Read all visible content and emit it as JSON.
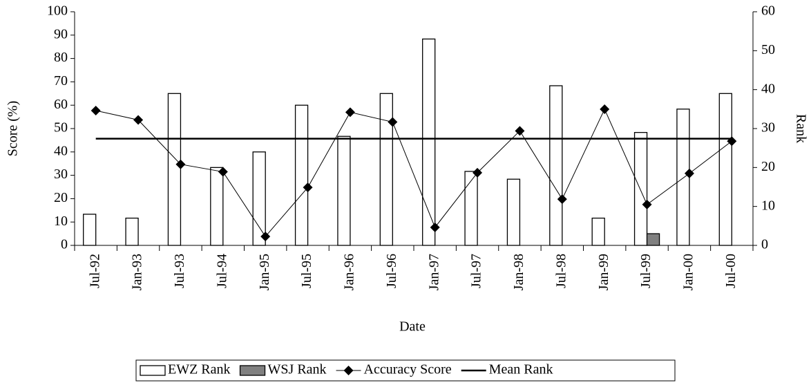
{
  "chart_data": {
    "type": "bar-line",
    "xlabel": "Date",
    "ylabel": "Score (%)",
    "y2label": "Rank",
    "categories": [
      "Jul-92",
      "Jan-93",
      "Jul-93",
      "Jul-94",
      "Jan-95",
      "Jul-95",
      "Jan-96",
      "Jul-96",
      "Jan-97",
      "Jul-97",
      "Jan-98",
      "Jul-98",
      "Jan-99",
      "Jul-99",
      "Jan-00",
      "Jul-00"
    ],
    "series": [
      {
        "name": "EWZ Rank",
        "type": "bar",
        "axis": "y2",
        "color": "#ffffff",
        "values": [
          8,
          7,
          39,
          20,
          24,
          36,
          28,
          39,
          53,
          19,
          17,
          41,
          7,
          29,
          35,
          39
        ]
      },
      {
        "name": "WSJ Rank",
        "type": "bar",
        "axis": "y2",
        "color": "#808080",
        "values": [
          null,
          null,
          null,
          null,
          null,
          null,
          null,
          null,
          null,
          null,
          null,
          null,
          null,
          3,
          null,
          null
        ]
      },
      {
        "name": "Accuracy Score",
        "type": "line",
        "marker": "diamond",
        "color": "#000000",
        "values": [
          57.7,
          53.7,
          34.7,
          31.5,
          3.8,
          24.8,
          57,
          52.8,
          7.7,
          31.1,
          49,
          19.8,
          58.3,
          17.5,
          30.8,
          44.6
        ]
      },
      {
        "name": "Mean Rank",
        "type": "line",
        "marker": "none",
        "axis": "y2",
        "color": "#000000",
        "values": [
          27.4,
          27.4,
          27.4,
          27.4,
          27.4,
          27.4,
          27.4,
          27.4,
          27.4,
          27.4,
          27.4,
          27.4,
          27.4,
          27.4,
          27.4,
          27.4
        ]
      }
    ],
    "ylim": [
      0,
      100
    ],
    "yticks": [
      0,
      10,
      20,
      30,
      40,
      50,
      60,
      70,
      80,
      90,
      100
    ],
    "y2lim": [
      0,
      60
    ],
    "y2ticks": [
      0,
      10,
      20,
      30,
      40,
      50,
      60
    ],
    "legend": "bottom"
  }
}
